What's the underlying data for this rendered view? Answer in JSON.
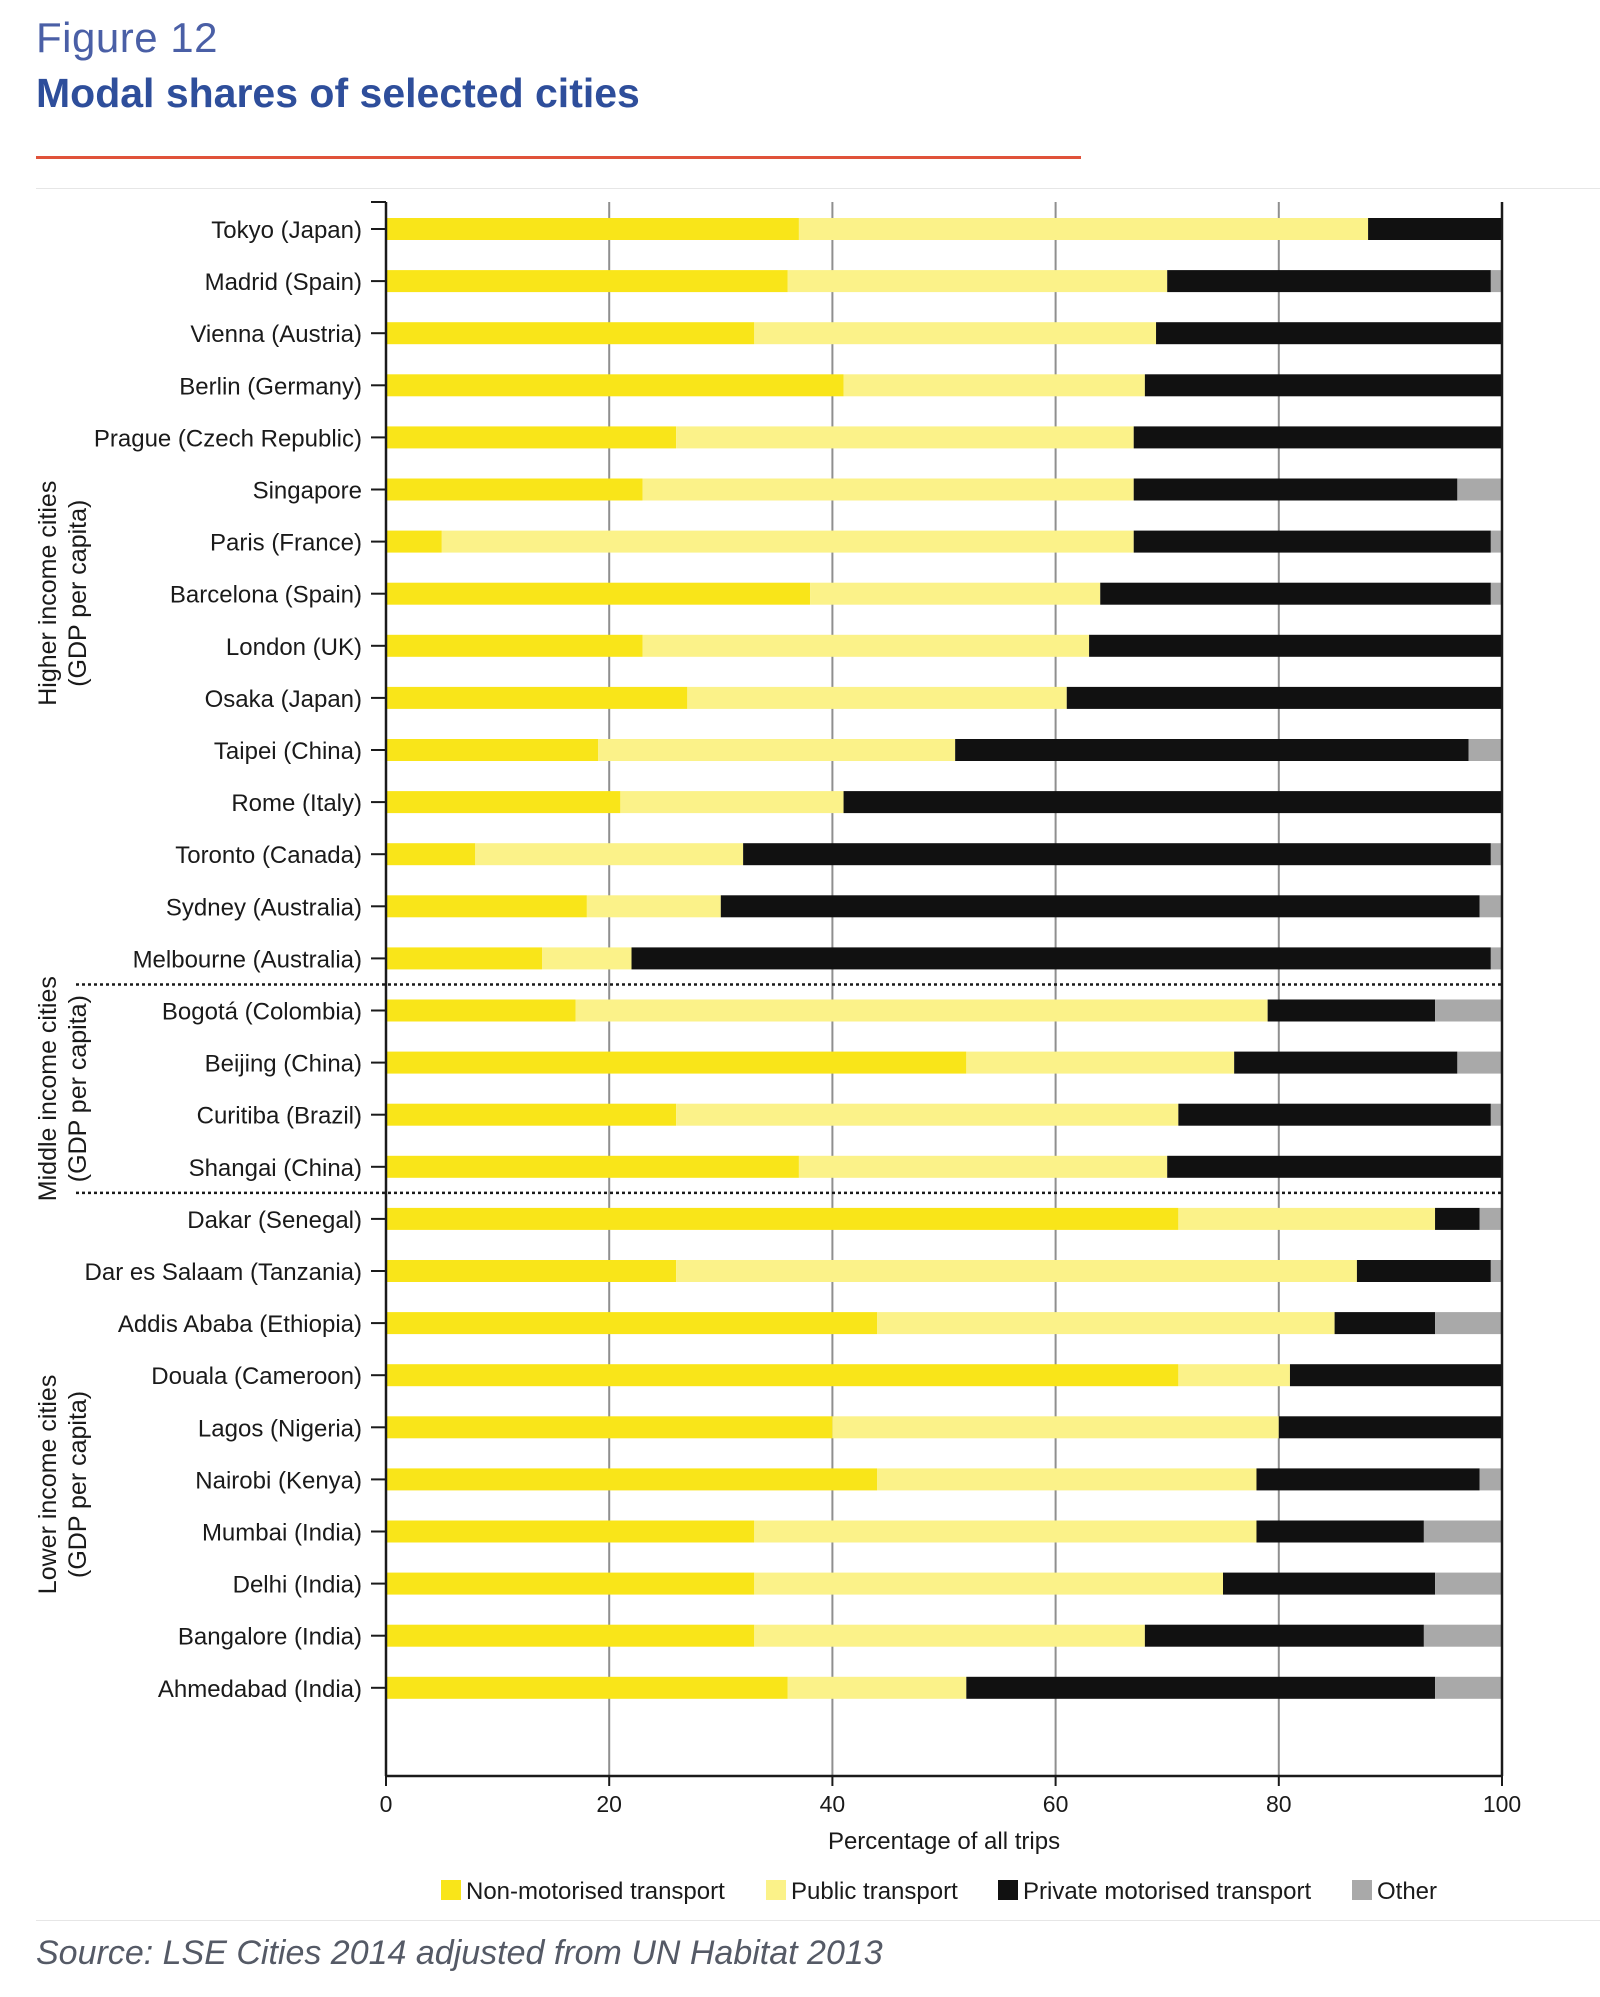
{
  "figure": {
    "label": "Figure 12",
    "title": "Modal shares of selected cities",
    "source": "Source: LSE Cities 2014 adjusted from UN Habitat 2013"
  },
  "colors": {
    "non_motorised": "#f9e519",
    "public": "#fbf289",
    "private": "#111111",
    "other": "#a9a9a9",
    "title": "#2e4e9b",
    "rule": "#e0523a"
  },
  "chart_data": {
    "type": "bar",
    "orientation": "horizontal",
    "stacked": true,
    "title": "Modal shares of selected cities",
    "xlabel": "Percentage of all trips",
    "ylabel": "",
    "xlim": [
      0,
      100
    ],
    "xticks": [
      0,
      20,
      40,
      60,
      80,
      100
    ],
    "grid": "vertical",
    "legend_position": "bottom",
    "categories": [
      "Tokyo (Japan)",
      "Madrid (Spain)",
      "Vienna (Austria)",
      "Berlin (Germany)",
      "Prague (Czech Republic)",
      "Singapore",
      "Paris (France)",
      "Barcelona (Spain)",
      "London (UK)",
      "Osaka (Japan)",
      "Taipei (China)",
      "Rome (Italy)",
      "Toronto (Canada)",
      "Sydney (Australia)",
      "Melbourne (Australia)",
      "Bogotá (Colombia)",
      "Beijing (China)",
      "Curitiba (Brazil)",
      "Shangai (China)",
      "Dakar (Senegal)",
      "Dar es Salaam (Tanzania)",
      "Addis Ababa (Ethiopia)",
      "Douala (Cameroon)",
      "Lagos (Nigeria)",
      "Nairobi (Kenya)",
      "Mumbai (India)",
      "Delhi (India)",
      "Bangalore (India)",
      "Ahmedabad (India)"
    ],
    "series": [
      {
        "name": "Non-motorised transport",
        "color": "#f9e519",
        "values": [
          37,
          36,
          33,
          41,
          26,
          23,
          5,
          38,
          23,
          27,
          19,
          21,
          8,
          18,
          14,
          17,
          52,
          26,
          37,
          71,
          26,
          44,
          71,
          40,
          44,
          33,
          33,
          33,
          36
        ]
      },
      {
        "name": "Public transport",
        "color": "#fbf289",
        "values": [
          51,
          34,
          36,
          27,
          41,
          44,
          62,
          26,
          40,
          34,
          32,
          20,
          24,
          12,
          8,
          62,
          24,
          45,
          33,
          23,
          61,
          41,
          10,
          40,
          34,
          45,
          42,
          35,
          16
        ]
      },
      {
        "name": "Private motorised transport",
        "color": "#111111",
        "values": [
          12,
          29,
          31,
          32,
          33,
          29,
          32,
          35,
          37,
          39,
          46,
          59,
          67,
          68,
          77,
          15,
          20,
          28,
          30,
          4,
          12,
          9,
          19,
          20,
          20,
          15,
          19,
          25,
          42
        ]
      },
      {
        "name": "Other",
        "color": "#a9a9a9",
        "values": [
          0,
          1,
          0,
          0,
          0,
          4,
          1,
          1,
          0,
          0,
          3,
          0,
          1,
          2,
          1,
          6,
          4,
          1,
          0,
          2,
          1,
          6,
          0,
          0,
          2,
          7,
          6,
          7,
          6
        ]
      }
    ],
    "groups": [
      {
        "label_lines": [
          "Higher income cities",
          "(GDP per capita)"
        ],
        "start": 0,
        "end": 14
      },
      {
        "label_lines": [
          "Middle income cities",
          "(GDP per capita)"
        ],
        "start": 15,
        "end": 18
      },
      {
        "label_lines": [
          "Lower income cities",
          "(GDP per capita)"
        ],
        "start": 19,
        "end": 28
      }
    ],
    "legend": [
      "Non-motorised transport",
      "Public transport",
      "Private motorised transport",
      "Other"
    ]
  }
}
